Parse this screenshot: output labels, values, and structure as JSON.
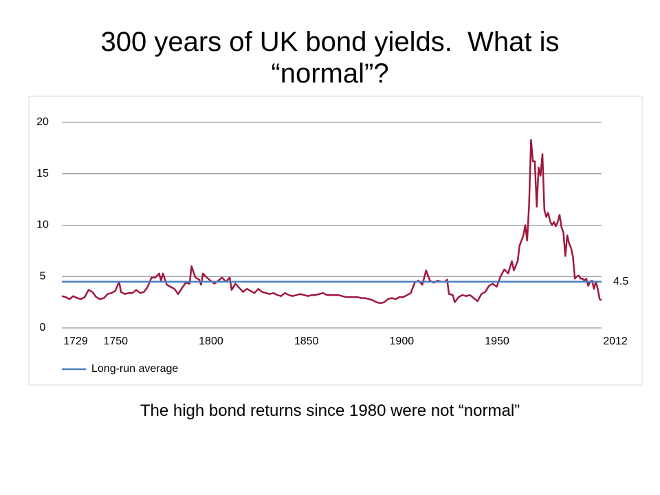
{
  "title": "300 years of UK bond yields.  What is “normal”?",
  "caption": "The high bond returns since 1980 were not “normal”",
  "chart_data": {
    "type": "line",
    "x": [
      1729,
      1731,
      1733,
      1735,
      1737,
      1739,
      1741,
      1743,
      1745,
      1747,
      1749,
      1751,
      1753,
      1755,
      1757,
      1759,
      1760,
      1762,
      1764,
      1766,
      1768,
      1770,
      1772,
      1774,
      1776,
      1778,
      1780,
      1781,
      1782,
      1784,
      1786,
      1788,
      1790,
      1792,
      1794,
      1796,
      1797,
      1799,
      1801,
      1802,
      1803,
      1805,
      1807,
      1809,
      1811,
      1813,
      1815,
      1817,
      1818,
      1820,
      1822,
      1824,
      1826,
      1828,
      1830,
      1832,
      1834,
      1836,
      1838,
      1840,
      1842,
      1844,
      1846,
      1848,
      1850,
      1852,
      1854,
      1856,
      1858,
      1860,
      1862,
      1864,
      1866,
      1868,
      1870,
      1872,
      1874,
      1876,
      1878,
      1880,
      1882,
      1884,
      1886,
      1888,
      1890,
      1892,
      1894,
      1896,
      1898,
      1900,
      1902,
      1904,
      1906,
      1908,
      1910,
      1912,
      1914,
      1916,
      1918,
      1920,
      1922,
      1924,
      1926,
      1928,
      1930,
      1931,
      1932,
      1934,
      1935,
      1937,
      1939,
      1941,
      1943,
      1945,
      1947,
      1949,
      1951,
      1953,
      1955,
      1957,
      1959,
      1961,
      1963,
      1965,
      1966,
      1968,
      1969,
      1971,
      1972,
      1973,
      1974,
      1975,
      1976,
      1977,
      1978,
      1979,
      1980,
      1981,
      1982,
      1983,
      1984,
      1985,
      1986,
      1987,
      1988,
      1989,
      1990,
      1991,
      1992,
      1993,
      1994,
      1995,
      1996,
      1997,
      1998,
      1999,
      2000,
      2001,
      2002,
      2003,
      2004,
      2005,
      2006,
      2007,
      2008,
      2009,
      2010,
      2011,
      2012
    ],
    "series": [
      {
        "color": "#a0173c",
        "values": [
          3.1,
          3.0,
          2.8,
          3.1,
          2.9,
          2.8,
          3.0,
          3.7,
          3.5,
          3.0,
          2.8,
          2.9,
          3.3,
          3.4,
          3.6,
          4.5,
          3.5,
          3.3,
          3.4,
          3.4,
          3.7,
          3.4,
          3.5,
          4.0,
          4.9,
          4.9,
          5.3,
          4.6,
          5.3,
          4.2,
          4.0,
          3.8,
          3.3,
          3.9,
          4.4,
          4.3,
          6.0,
          4.9,
          4.7,
          4.2,
          5.3,
          4.9,
          4.6,
          4.3,
          4.6,
          4.9,
          4.5,
          4.9,
          3.7,
          4.3,
          3.9,
          3.5,
          3.8,
          3.6,
          3.4,
          3.8,
          3.5,
          3.4,
          3.3,
          3.4,
          3.2,
          3.1,
          3.4,
          3.2,
          3.1,
          3.2,
          3.3,
          3.2,
          3.1,
          3.2,
          3.2,
          3.3,
          3.4,
          3.2,
          3.2,
          3.2,
          3.2,
          3.1,
          3.0,
          3.0,
          3.0,
          3.0,
          2.9,
          2.9,
          2.8,
          2.7,
          2.5,
          2.4,
          2.5,
          2.8,
          2.9,
          2.8,
          3.0,
          3.0,
          3.2,
          3.4,
          4.4,
          4.6,
          4.2,
          5.6,
          4.6,
          4.4,
          4.6,
          4.5,
          4.5,
          4.7,
          3.3,
          3.2,
          2.5,
          3.0,
          3.2,
          3.1,
          3.2,
          2.9,
          2.6,
          3.3,
          3.5,
          4.1,
          4.3,
          4.0,
          5.0,
          5.7,
          5.3,
          6.5,
          5.6,
          6.5,
          8.0,
          9.0,
          10.0,
          8.5,
          12.0,
          18.3,
          16.2,
          16.2,
          11.8,
          15.6,
          14.8,
          16.9,
          11.5,
          10.8,
          11.2,
          10.4,
          10.0,
          10.3,
          9.9,
          10.3,
          11.0,
          9.8,
          9.3,
          7.0,
          9.0,
          8.2,
          7.8,
          6.9,
          4.8,
          5.0,
          5.1,
          4.8,
          4.8,
          4.6,
          4.8,
          4.1,
          4.5,
          4.6,
          3.8,
          4.5,
          3.8,
          2.8,
          2.7
        ]
      },
      {
        "name": "Long-run average",
        "color": "#4a7ebb",
        "value": 4.5
      }
    ],
    "xlim": [
      1729,
      2012
    ],
    "xticks": [
      1729,
      1750,
      1800,
      1850,
      1900,
      1950,
      2012
    ],
    "ylim": [
      0,
      20
    ],
    "yticks": [
      0,
      5,
      10,
      15,
      20
    ],
    "grid": true
  }
}
